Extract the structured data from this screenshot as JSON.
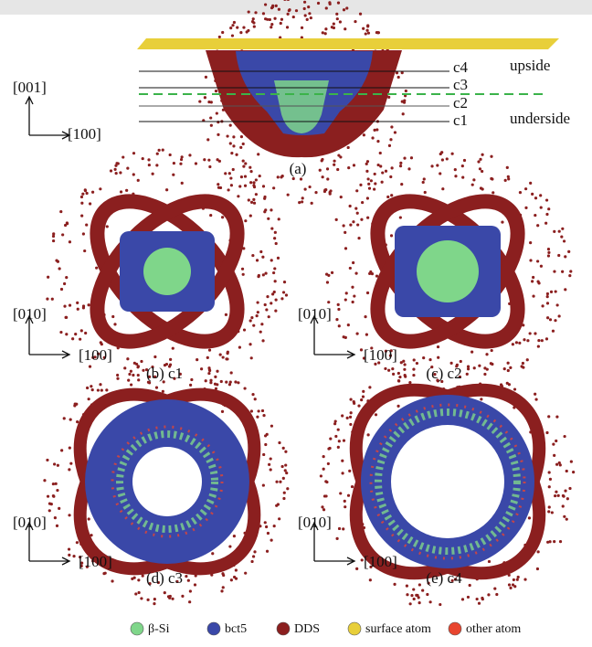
{
  "panels": [
    {
      "label": "(a)",
      "axes": [
        "[001]",
        "[100]"
      ],
      "slices": [
        "c4",
        "c3",
        "c2",
        "c1"
      ],
      "regions": [
        "upside",
        "underside"
      ]
    },
    {
      "label": "(b) c1",
      "axes": [
        "[010]",
        "[100]"
      ]
    },
    {
      "label": "(c) c2",
      "axes": [
        "[010]",
        "[100]"
      ]
    },
    {
      "label": "(d) c3",
      "axes": [
        "[010]",
        "[100]"
      ]
    },
    {
      "label": "(e) c4",
      "axes": [
        "[010]",
        "[100]"
      ]
    }
  ],
  "legend": [
    {
      "label": "β-Si",
      "color": "#7fd68a"
    },
    {
      "label": "bct5",
      "color": "#3a48a8"
    },
    {
      "label": "DDS",
      "color": "#8b1f1f"
    },
    {
      "label": "surface atom",
      "color": "#e8cf3a"
    },
    {
      "label": "other atom",
      "color": "#e8452f"
    }
  ]
}
